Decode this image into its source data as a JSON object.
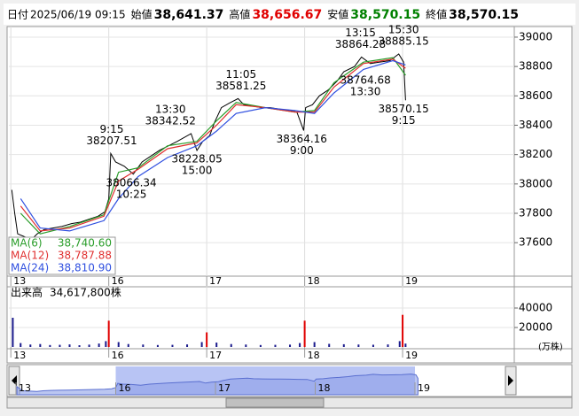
{
  "header": [
    {
      "label": "日付",
      "value": "2025/06/19 09:15",
      "color": "#000000"
    },
    {
      "label": "始値",
      "value": "38,641.37",
      "color": "#000000"
    },
    {
      "label": "高値",
      "value": "38,656.67",
      "color": "#e00000"
    },
    {
      "label": "安値",
      "value": "38,570.15",
      "color": "#008000"
    },
    {
      "label": "終値",
      "value": "38,570.15",
      "color": "#000000"
    }
  ],
  "chart_data": [
    {
      "type": "line",
      "xlim": [
        -0.02,
        5.14
      ],
      "xticks": [
        {
          "value": 0,
          "label": "13"
        },
        {
          "value": 1,
          "label": "16"
        },
        {
          "value": 2,
          "label": "17"
        },
        {
          "value": 3,
          "label": "18"
        },
        {
          "value": 4,
          "label": "19"
        }
      ],
      "ylim": [
        37372,
        39054
      ],
      "yticks": [
        37600,
        37800,
        38000,
        38200,
        38400,
        38600,
        38800,
        39000
      ],
      "grid": true,
      "series": [
        {
          "color": "#000000",
          "x": [
            0.01,
            0.04,
            0.07,
            0.14,
            0.21,
            0.27,
            0.34,
            0.43,
            0.52,
            0.62,
            0.71,
            0.8,
            0.89,
            0.96,
            1.0,
            1.02,
            1.07,
            1.16,
            1.25,
            1.34,
            1.43,
            1.52,
            1.61,
            1.7,
            1.84,
            1.9,
            1.96,
            2.03,
            2.08,
            2.15,
            2.23,
            2.32,
            2.38,
            2.47,
            2.56,
            2.65,
            2.74,
            2.83,
            2.92,
            2.99,
            3.01,
            3.08,
            3.15,
            3.24,
            3.33,
            3.4,
            3.51,
            3.58,
            3.67,
            3.76,
            3.87,
            3.96,
            4.01,
            4.03
          ],
          "values": [
            37960,
            37800,
            37660,
            37640,
            37620,
            37660,
            37690,
            37700,
            37710,
            37730,
            37740,
            37760,
            37780,
            37810,
            37900,
            38207.51,
            38150,
            38120,
            38066.34,
            38150,
            38190,
            38230,
            38260,
            38290,
            38342.52,
            38228.05,
            38290,
            38330,
            38420,
            38520,
            38550,
            38581.25,
            38540,
            38530,
            38520,
            38520,
            38510,
            38500,
            38490,
            38364.16,
            38520,
            38540,
            38600,
            38640,
            38700,
            38764.68,
            38800,
            38864.28,
            38820,
            38830,
            38840,
            38885.15,
            38830,
            38570.15
          ]
        },
        {
          "name": "MA(6)",
          "legend_label": "38,740.60",
          "color": "#2a9d2a",
          "x": [
            0.1,
            0.3,
            0.6,
            0.95,
            1.1,
            1.3,
            1.6,
            1.9,
            2.1,
            2.3,
            2.6,
            2.9,
            3.1,
            3.3,
            3.6,
            3.9,
            4.03
          ],
          "values": [
            37800,
            37660,
            37710,
            37790,
            38080,
            38110,
            38260,
            38290,
            38430,
            38555,
            38520,
            38490,
            38500,
            38690,
            38830,
            38860,
            38740.6
          ]
        },
        {
          "name": "MA(12)",
          "legend_label": "38,787.88",
          "color": "#e03030",
          "x": [
            0.1,
            0.3,
            0.6,
            0.95,
            1.1,
            1.3,
            1.6,
            1.9,
            2.1,
            2.3,
            2.6,
            2.9,
            3.1,
            3.3,
            3.6,
            3.9,
            4.03
          ],
          "values": [
            37850,
            37680,
            37700,
            37780,
            38020,
            38100,
            38240,
            38280,
            38400,
            38540,
            38520,
            38490,
            38490,
            38660,
            38820,
            38850,
            38787.88
          ]
        },
        {
          "name": "MA(24)",
          "legend_label": "38,810.90",
          "color": "#3050e0",
          "x": [
            0.1,
            0.3,
            0.6,
            0.95,
            1.1,
            1.3,
            1.6,
            1.9,
            2.1,
            2.3,
            2.6,
            2.9,
            3.1,
            3.3,
            3.6,
            3.9,
            4.03
          ],
          "values": [
            37900,
            37700,
            37680,
            37750,
            37900,
            38050,
            38180,
            38260,
            38360,
            38480,
            38520,
            38500,
            38480,
            38620,
            38780,
            38840,
            38810.9
          ]
        }
      ],
      "annotations": [
        {
          "x": 1.03,
          "y": 38207.51,
          "time": "9:15",
          "position": "above"
        },
        {
          "x": 1.23,
          "y": 38066.34,
          "time": "10:25",
          "position": "below"
        },
        {
          "x": 1.63,
          "y": 38342.52,
          "time": "13:30",
          "position": "above"
        },
        {
          "x": 1.9,
          "y": 38228.05,
          "time": "15:00",
          "position": "below"
        },
        {
          "x": 2.35,
          "y": 38581.25,
          "time": "11:05",
          "position": "above"
        },
        {
          "x": 2.97,
          "y": 38364.16,
          "time": "9:00",
          "position": "below"
        },
        {
          "x": 3.57,
          "y": 38864.28,
          "time": "13:15",
          "position": "above"
        },
        {
          "x": 4.01,
          "y": 38885.15,
          "time": "15:30",
          "position": "above"
        },
        {
          "x": 3.62,
          "y": 38764.68,
          "time": "13:30",
          "position": "below"
        },
        {
          "x": 4.01,
          "y": 38570.15,
          "time": "9:15",
          "position": "below"
        }
      ]
    },
    {
      "type": "bar",
      "title": "出来高",
      "value_label": "34,617,800株",
      "unit_label": "(万株)",
      "xlim": [
        -0.02,
        5.14
      ],
      "xticks": [
        {
          "value": 0,
          "label": "13"
        },
        {
          "value": 1,
          "label": "16"
        },
        {
          "value": 2,
          "label": "17"
        },
        {
          "value": 3,
          "label": "18"
        },
        {
          "value": 4,
          "label": "19"
        }
      ],
      "ylim": [
        0,
        60000
      ],
      "yticks": [
        20000,
        40000
      ],
      "grid": true,
      "x": [
        0.02,
        0.1,
        0.2,
        0.3,
        0.4,
        0.5,
        0.6,
        0.7,
        0.8,
        0.9,
        0.97,
        1.0,
        1.1,
        1.2,
        1.35,
        1.5,
        1.65,
        1.8,
        1.95,
        2.0,
        2.1,
        2.25,
        2.4,
        2.55,
        2.7,
        2.85,
        2.95,
        3.0,
        3.1,
        3.25,
        3.4,
        3.55,
        3.7,
        3.85,
        3.97,
        4.0,
        4.03
      ],
      "values": [
        30000,
        4000,
        2500,
        3000,
        2000,
        2200,
        2600,
        1800,
        2400,
        3500,
        6000,
        27000,
        5000,
        3000,
        2500,
        2000,
        2200,
        2600,
        5000,
        15000,
        4500,
        3000,
        2500,
        2000,
        2200,
        2400,
        4000,
        27000,
        5000,
        3200,
        2800,
        2500,
        2300,
        2600,
        6000,
        33000,
        3461.78
      ],
      "colors": [
        "#1a1a8c",
        "#1a1a8c",
        "#1a1a8c",
        "#1a1a8c",
        "#1a1a8c",
        "#1a1a8c",
        "#1a1a8c",
        "#1a1a8c",
        "#1a1a8c",
        "#1a1a8c",
        "#1a1a8c",
        "#e00000",
        "#1a1a8c",
        "#1a1a8c",
        "#1a1a8c",
        "#1a1a8c",
        "#1a1a8c",
        "#1a1a8c",
        "#1a1a8c",
        "#e00000",
        "#1a1a8c",
        "#1a1a8c",
        "#1a1a8c",
        "#1a1a8c",
        "#1a1a8c",
        "#1a1a8c",
        "#1a1a8c",
        "#e00000",
        "#1a1a8c",
        "#1a1a8c",
        "#1a1a8c",
        "#1a1a8c",
        "#1a1a8c",
        "#1a1a8c",
        "#1a1a8c",
        "#e00000",
        "#1a1a8c"
      ]
    }
  ],
  "navigator": {
    "labels": [
      "13",
      "16",
      "17",
      "18",
      "19"
    ]
  }
}
